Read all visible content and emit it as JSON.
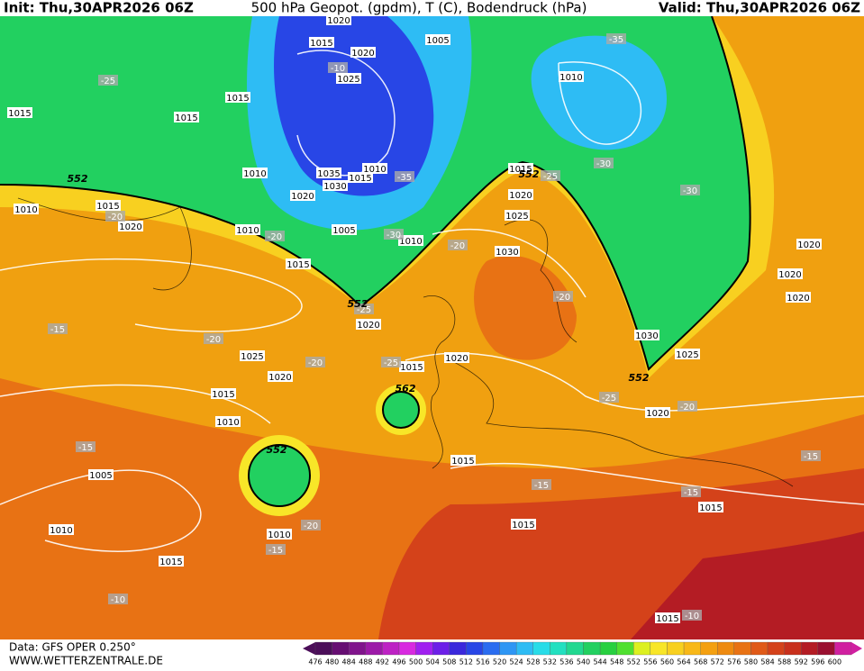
{
  "header": {
    "init": "Init: Thu,30APR2026 06Z",
    "title": "500 hPa Geopot. (gpdm), T (C), Bodendruck (hPa)",
    "valid": "Valid: Thu,30APR2026 06Z"
  },
  "footer": {
    "data": "Data: GFS OPER 0.250°",
    "site": "WWW.WETTERZENTRALE.DE"
  },
  "map": {
    "isobar_labels": [
      "1020",
      "1015",
      "1020",
      "1005",
      "1010",
      "1025",
      "1015",
      "1015",
      "1015",
      "1010",
      "1035",
      "1010",
      "1015",
      "1030",
      "1020",
      "1015",
      "1020",
      "1025",
      "1015",
      "1010",
      "1020",
      "1010",
      "1005",
      "1010",
      "1030",
      "1015",
      "1020",
      "1020",
      "1020",
      "1020",
      "1030",
      "1025",
      "1025",
      "1020",
      "1015",
      "1020",
      "1015",
      "1010",
      "1020",
      "1005",
      "1015",
      "1010",
      "1010",
      "1015",
      "1015",
      "1015",
      "1015"
    ],
    "temperature_labels": [
      "-25",
      "-10",
      "-35",
      "-35",
      "-25",
      "-30",
      "-30",
      "-20",
      "-20",
      "-30",
      "-20",
      "-20",
      "-25",
      "-15",
      "-20",
      "-20",
      "-25",
      "-25",
      "-20",
      "-15",
      "-15",
      "-15",
      "-15",
      "-20",
      "-15",
      "-10",
      "-10"
    ],
    "geopotential_labels": [
      "552",
      "552",
      "552",
      "552",
      "562",
      "552"
    ]
  },
  "colorbar": {
    "values": [
      476,
      480,
      484,
      488,
      492,
      496,
      500,
      504,
      508,
      512,
      516,
      520,
      524,
      528,
      532,
      536,
      540,
      544,
      548,
      552,
      556,
      560,
      564,
      568,
      572,
      576,
      580,
      584,
      588,
      592,
      596,
      600
    ],
    "colors": [
      "#4b0e59",
      "#660e72",
      "#80148c",
      "#9c1aa8",
      "#bd22c4",
      "#d829e0",
      "#a020f0",
      "#6c1fe8",
      "#3a28dc",
      "#2846e6",
      "#2a6cf0",
      "#2e96f4",
      "#2ebcf4",
      "#28dce8",
      "#22e0c0",
      "#22d890",
      "#22d060",
      "#28d040",
      "#50e030",
      "#dcf020",
      "#f8e628",
      "#f8d020",
      "#f8b818",
      "#f4a010",
      "#ee8a10",
      "#e87214",
      "#e05a18",
      "#d4421a",
      "#c8301c",
      "#b41c24",
      "#9a1030",
      "#d020a0"
    ]
  }
}
